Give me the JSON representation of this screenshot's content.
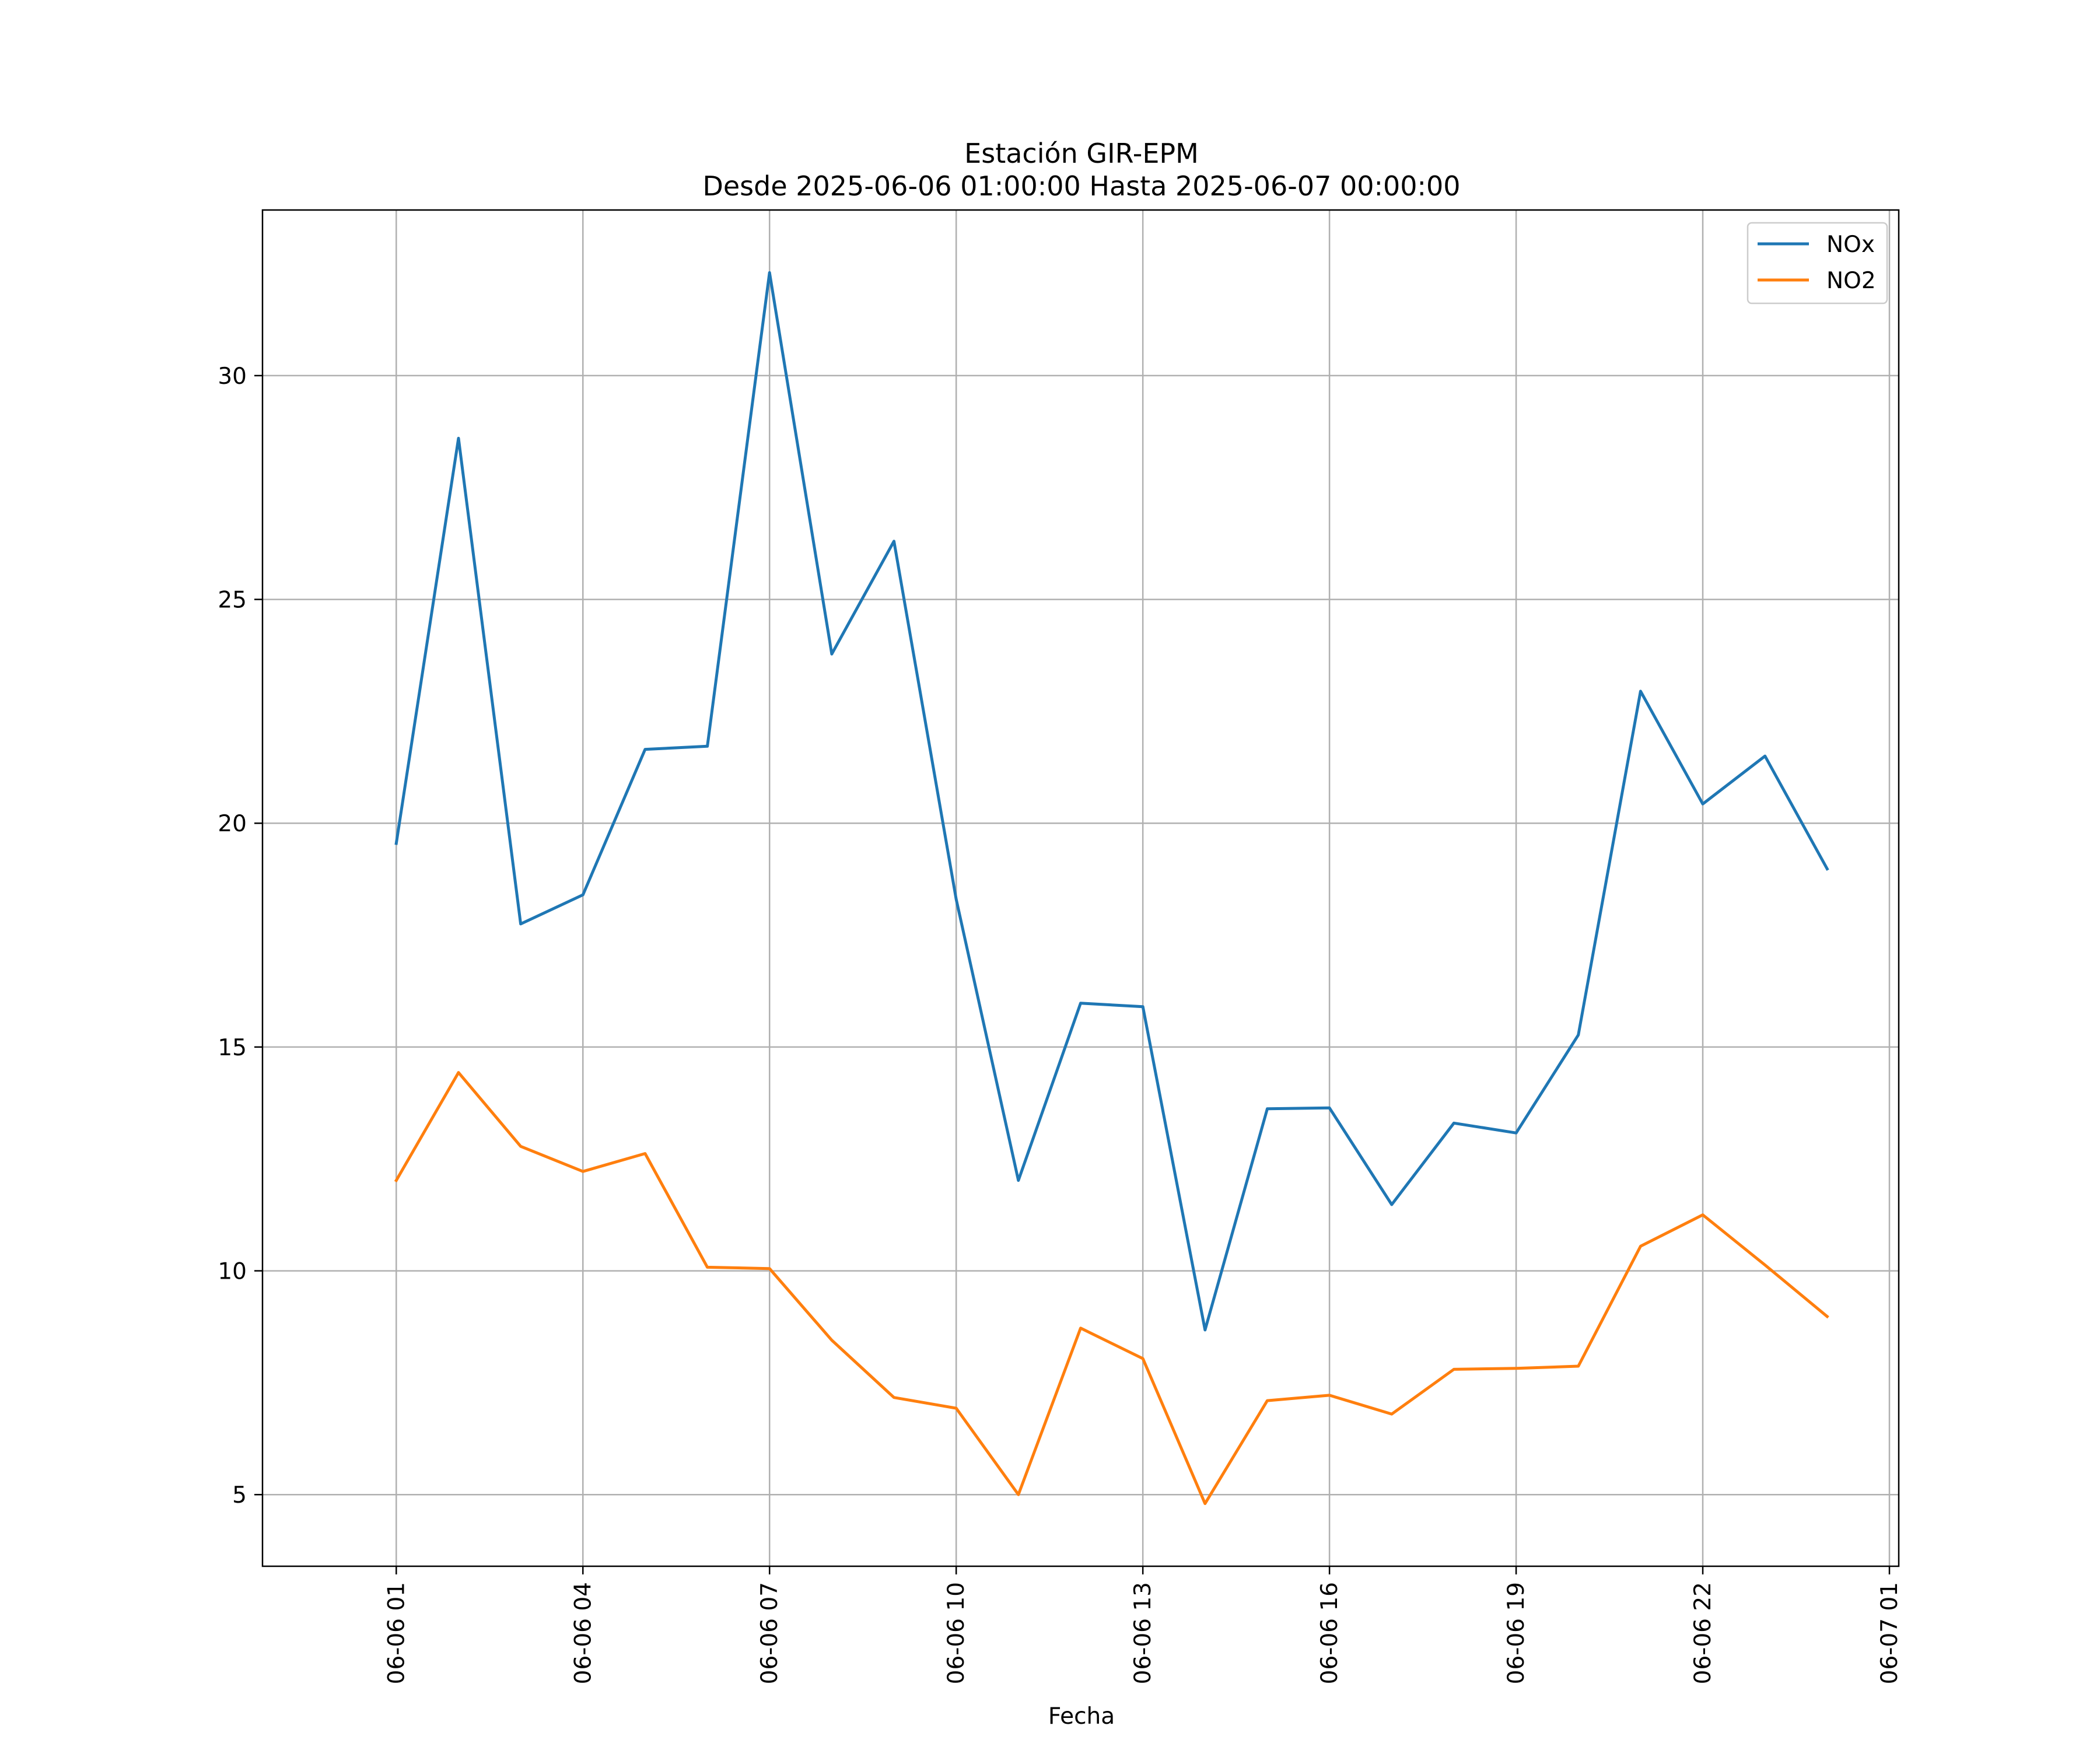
{
  "chart_data": {
    "type": "line",
    "title": "Estación GIR-EPM",
    "subtitle": "Desde 2025-06-06 01:00:00 Hasta 2025-06-07 00:00:00",
    "xlabel": "Fecha",
    "ylabel": "",
    "x": [
      "2025-06-06 01:00",
      "2025-06-06 02:00",
      "2025-06-06 03:00",
      "2025-06-06 04:00",
      "2025-06-06 05:00",
      "2025-06-06 06:00",
      "2025-06-06 07:00",
      "2025-06-06 08:00",
      "2025-06-06 09:00",
      "2025-06-06 10:00",
      "2025-06-06 11:00",
      "2025-06-06 12:00",
      "2025-06-06 13:00",
      "2025-06-06 14:00",
      "2025-06-06 15:00",
      "2025-06-06 16:00",
      "2025-06-06 17:00",
      "2025-06-06 18:00",
      "2025-06-06 19:00",
      "2025-06-06 20:00",
      "2025-06-06 21:00",
      "2025-06-06 22:00",
      "2025-06-06 23:00",
      "2025-06-07 00:00"
    ],
    "series": [
      {
        "name": "NOx",
        "color": "#1f77b4",
        "values": [
          19.55,
          28.6,
          17.75,
          18.4,
          21.65,
          21.72,
          32.3,
          23.78,
          26.3,
          18.3,
          12.02,
          15.98,
          15.9,
          8.68,
          13.62,
          13.64,
          11.48,
          13.3,
          13.08,
          15.27,
          22.95,
          20.43,
          21.5,
          18.98
        ]
      },
      {
        "name": "NO2",
        "color": "#ff7f0e",
        "values": [
          12.02,
          14.43,
          12.78,
          12.22,
          12.62,
          10.08,
          10.05,
          8.45,
          7.17,
          6.93,
          5.0,
          8.72,
          8.04,
          4.8,
          7.1,
          7.22,
          6.8,
          7.8,
          7.82,
          7.87,
          10.55,
          11.25,
          10.13,
          8.98
        ]
      }
    ],
    "x_ticks": [
      "06-06 01",
      "06-06 04",
      "06-06 07",
      "06-06 10",
      "06-06 13",
      "06-06 16",
      "06-06 19",
      "06-06 22",
      "06-07 01"
    ],
    "y_ticks": [
      "5",
      "10",
      "15",
      "20",
      "25",
      "30"
    ],
    "xlim": [
      "2025-06-05 22:51",
      "2025-06-07 01:09"
    ],
    "ylim": [
      3.4,
      33.7
    ],
    "grid": true,
    "legend_position": "top-right"
  }
}
